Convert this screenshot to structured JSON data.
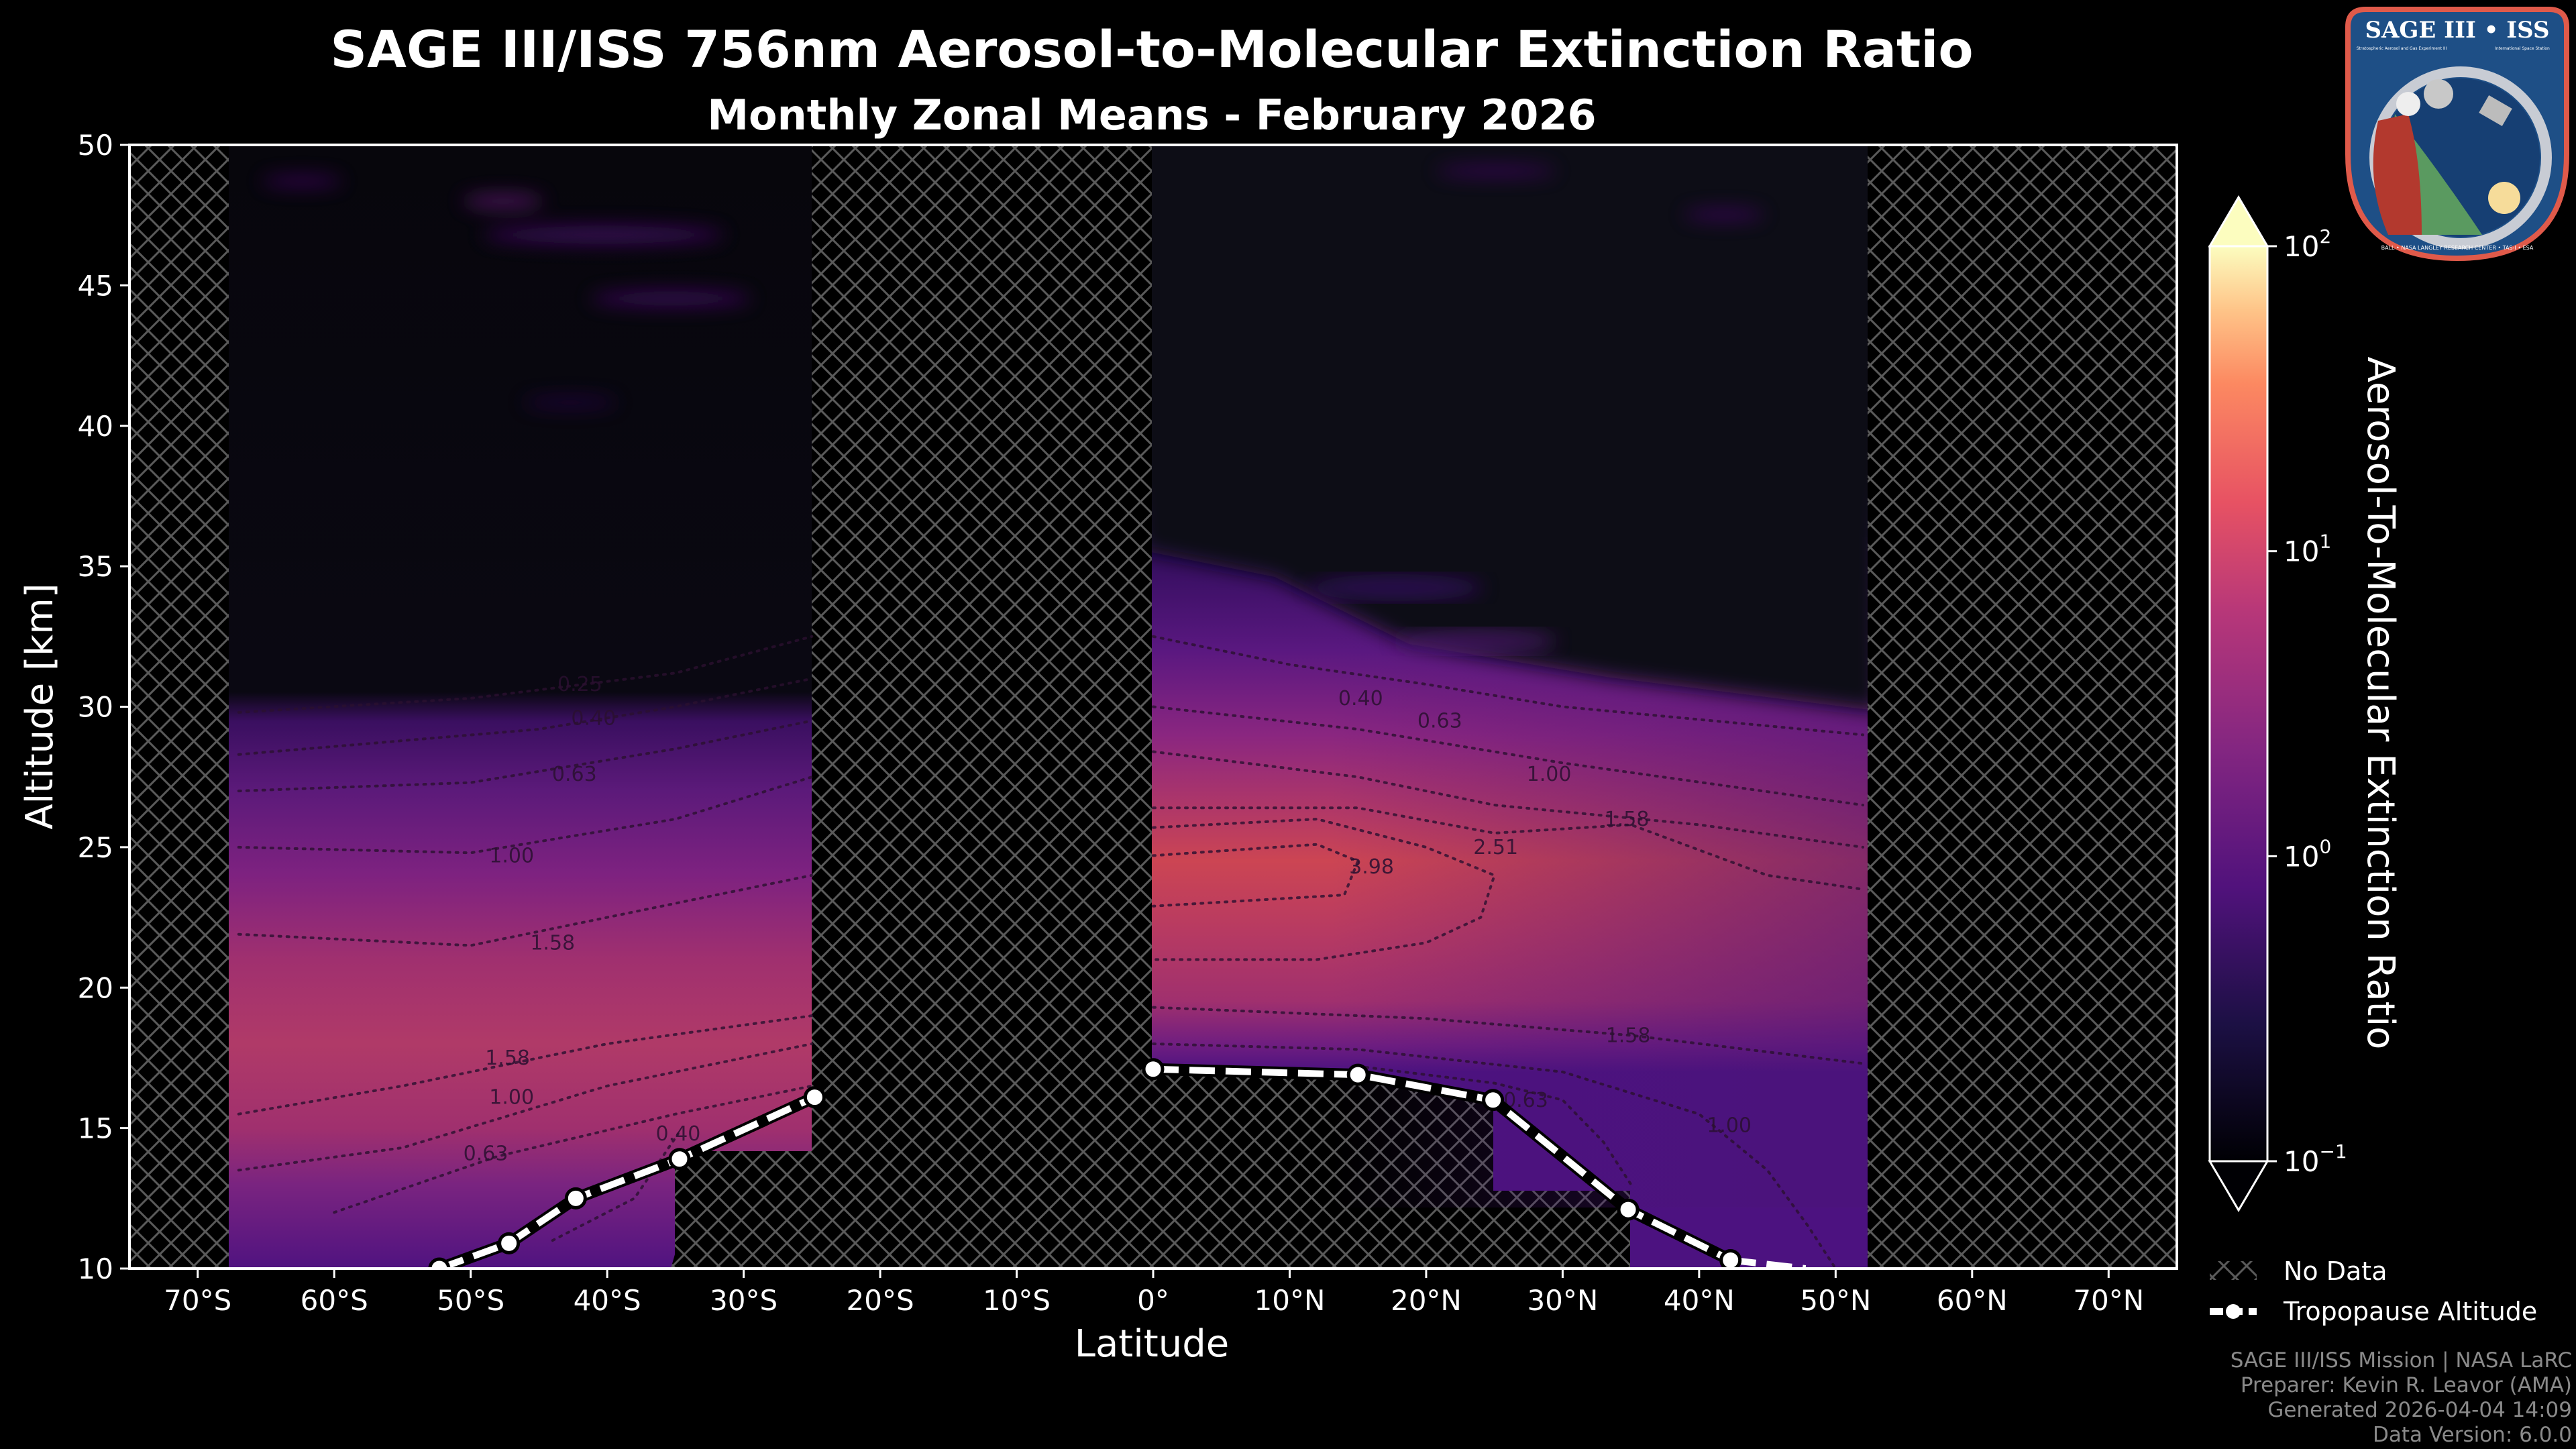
{
  "title": "SAGE III/ISS 756nm Aerosol-to-Molecular Extinction Ratio",
  "subtitle": "Monthly Zonal Means - February 2026",
  "chart_data": {
    "type": "heatmap",
    "title": "SAGE III/ISS 756nm Aerosol-to-Molecular Extinction Ratio",
    "subtitle": "Monthly Zonal Means - February 2026",
    "xlabel": "Latitude",
    "ylabel": "Altitude [km]",
    "xlim": [
      -75,
      75
    ],
    "ylim": [
      10,
      50
    ],
    "x_ticks": [
      -70,
      -60,
      -50,
      -40,
      -30,
      -20,
      -10,
      0,
      10,
      20,
      30,
      40,
      50,
      60,
      70
    ],
    "x_tick_labels": [
      "70°S",
      "60°S",
      "50°S",
      "40°S",
      "30°S",
      "20°S",
      "10°S",
      "0°",
      "10°N",
      "20°N",
      "30°N",
      "40°N",
      "50°N",
      "60°N",
      "70°N"
    ],
    "y_ticks": [
      10,
      15,
      20,
      25,
      30,
      35,
      40,
      45,
      50
    ],
    "y_tick_labels": [
      "10",
      "15",
      "20",
      "25",
      "30",
      "35",
      "40",
      "45",
      "50"
    ],
    "colorbar": {
      "label": "Aerosol-To-Molecular Extinction Ratio",
      "scale": "log",
      "range": [
        0.1,
        100
      ],
      "colormap": "magma",
      "extend": "both",
      "ticks": [
        {
          "value": 100,
          "base": "10",
          "exp": "2"
        },
        {
          "value": 10,
          "base": "10",
          "exp": "1"
        },
        {
          "value": 1,
          "base": "10",
          "exp": "0"
        },
        {
          "value": 0.1,
          "base": "10",
          "exp": "−1"
        }
      ]
    },
    "data_regions": [
      {
        "lat_range": [
          -67.3,
          -24.8
        ]
      },
      {
        "lat_range": [
          0,
          52.2
        ]
      }
    ],
    "contour_levels": [
      0.25,
      0.4,
      0.63,
      1.0,
      1.58,
      2.51,
      3.98
    ],
    "contours": [
      {
        "level": "0.25",
        "points": [
          [
            -67,
            29.8
          ],
          [
            -50,
            30.3
          ],
          [
            -35,
            31.2
          ],
          [
            -25,
            32.5
          ]
        ],
        "label_at": [
          -42,
          30.8
        ]
      },
      {
        "level": "0.40",
        "points": [
          [
            -67,
            28.3
          ],
          [
            -45,
            29.2
          ],
          [
            -35,
            30
          ],
          [
            -25,
            31
          ]
        ],
        "label_at": [
          -41,
          29.6
        ]
      },
      {
        "level": "0.63",
        "points": [
          [
            -67,
            27
          ],
          [
            -50,
            27.3
          ],
          [
            -35,
            28.5
          ],
          [
            -25,
            29.5
          ]
        ],
        "label_at": [
          -42.4,
          27.6
        ]
      },
      {
        "level": "1.00",
        "points": [
          [
            -67,
            25
          ],
          [
            -50,
            24.8
          ],
          [
            -35,
            26
          ],
          [
            -25,
            27.5
          ]
        ],
        "label_at": [
          -47,
          24.7
        ]
      },
      {
        "level": "1.58",
        "points": [
          [
            -67,
            21.9
          ],
          [
            -50,
            21.5
          ],
          [
            -35,
            23
          ],
          [
            -25,
            24
          ]
        ],
        "label_at": [
          -44,
          21.6
        ]
      },
      {
        "level": "1.58",
        "points": [
          [
            -67,
            15.5
          ],
          [
            -55,
            16.5
          ],
          [
            -40,
            18
          ],
          [
            -25,
            19
          ]
        ],
        "label_at": [
          -47.3,
          17.5
        ]
      },
      {
        "level": "1.00",
        "points": [
          [
            -67,
            13.5
          ],
          [
            -55,
            14.3
          ],
          [
            -40,
            16.5
          ],
          [
            -25,
            18
          ]
        ],
        "label_at": [
          -47,
          16.1
        ]
      },
      {
        "level": "0.63",
        "points": [
          [
            -60,
            12
          ],
          [
            -48,
            14
          ],
          [
            -35,
            15.5
          ],
          [
            -25,
            16.5
          ]
        ],
        "label_at": [
          -48.9,
          14.1
        ]
      },
      {
        "level": "0.40",
        "points": [
          [
            -44,
            11
          ],
          [
            -38,
            12.5
          ],
          [
            -34.8,
            14.8
          ]
        ],
        "label_at": [
          -34.8,
          14.8
        ]
      },
      {
        "level": "0.40",
        "points": [
          [
            0,
            32.5
          ],
          [
            10,
            31.5
          ],
          [
            20,
            30.8
          ],
          [
            30,
            30
          ],
          [
            52,
            29
          ]
        ],
        "label_at": [
          15.2,
          30.3
        ]
      },
      {
        "level": "0.63",
        "points": [
          [
            0,
            30
          ],
          [
            15,
            29.2
          ],
          [
            30,
            28
          ],
          [
            52,
            26.5
          ]
        ],
        "label_at": [
          21,
          29.5
        ]
      },
      {
        "level": "1.00",
        "points": [
          [
            0,
            28.4
          ],
          [
            15,
            27.5
          ],
          [
            25,
            26.5
          ],
          [
            40,
            25.8
          ],
          [
            52,
            25
          ]
        ],
        "label_at": [
          29,
          27.6
        ]
      },
      {
        "level": "1.58",
        "points": [
          [
            0,
            26.4
          ],
          [
            15,
            26.4
          ],
          [
            25,
            25.5
          ],
          [
            35,
            25.8
          ],
          [
            45,
            24
          ],
          [
            52,
            23.5
          ]
        ],
        "label_at": [
          34.7,
          26
        ]
      },
      {
        "level": "2.51",
        "points": [
          [
            0,
            25.7
          ],
          [
            12,
            26
          ],
          [
            20,
            25
          ],
          [
            25,
            24
          ],
          [
            24,
            22.5
          ],
          [
            20,
            21.6
          ],
          [
            12,
            21
          ],
          [
            0,
            21
          ]
        ],
        "label_at": [
          25.1,
          25
        ]
      },
      {
        "level": "3.98",
        "points": [
          [
            0,
            24.7
          ],
          [
            12,
            25.1
          ],
          [
            15,
            24.5
          ],
          [
            14,
            23.3
          ],
          [
            0,
            22.9
          ]
        ],
        "label_at": [
          16,
          24.3
        ]
      },
      {
        "level": "1.58",
        "points": [
          [
            0,
            19.3
          ],
          [
            20,
            18.9
          ],
          [
            35,
            18.3
          ],
          [
            52,
            17.3
          ]
        ],
        "label_at": [
          34.8,
          18.3
        ]
      },
      {
        "level": "0.63",
        "points": [
          [
            15,
            17.2
          ],
          [
            25,
            16.6
          ],
          [
            30,
            16
          ],
          [
            33,
            14.5
          ],
          [
            35,
            13
          ]
        ],
        "label_at": [
          27.3,
          16
        ]
      },
      {
        "level": "1.00",
        "points": [
          [
            0,
            18
          ],
          [
            15,
            17.8
          ],
          [
            30,
            17
          ],
          [
            40,
            15.5
          ],
          [
            45,
            13.5
          ],
          [
            48,
            11.5
          ],
          [
            50,
            10
          ]
        ],
        "label_at": [
          42.2,
          15.1
        ]
      }
    ],
    "tropopause": {
      "name": "Tropopause Altitude",
      "points": [
        [
          -52.3,
          10.0
        ],
        [
          -47.2,
          10.9
        ],
        [
          -42.3,
          12.5
        ],
        [
          -34.7,
          13.9
        ],
        [
          -24.8,
          16.1
        ],
        [
          0,
          17.1
        ],
        [
          15,
          16.9
        ],
        [
          24.9,
          16.0
        ],
        [
          34.8,
          12.1
        ],
        [
          42.3,
          10.3
        ]
      ]
    },
    "legend": {
      "placement": "lower-right",
      "entries": [
        "No Data",
        "Tropopause Altitude"
      ]
    },
    "grid": false
  },
  "legend": {
    "no_data": "No Data",
    "tropopause": "Tropopause Altitude"
  },
  "footer": {
    "line1": "SAGE III/ISS Mission | NASA LaRC",
    "line2": "Preparer: Kevin R. Leavor (AMA)",
    "line3": "Generated 2026-04-04 14:09",
    "line4": "Data Version: 6.0.0"
  },
  "logo": {
    "title": "SAGE III • ISS",
    "subtitle_left": "Stratospheric Aerosol and Gas Experiment III",
    "subtitle_right": "International Space Station",
    "ring_text": "BALL • NASA LANGLEY RESEARCH CENTER • TAS-I • ESA"
  }
}
